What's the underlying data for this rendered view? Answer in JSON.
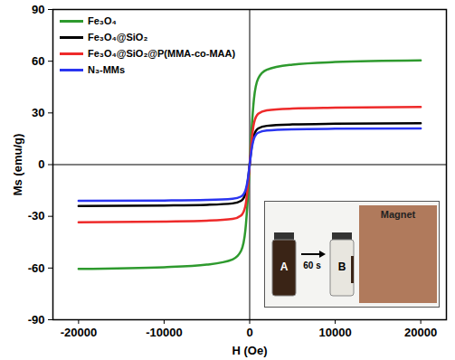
{
  "chart_data": {
    "type": "line",
    "x_label": "H (Oe)",
    "y_label": "Ms (emu/g)",
    "x": [
      -20000,
      -10000,
      -5000,
      -2000,
      -1000,
      -500,
      -200,
      0,
      200,
      500,
      1000,
      2000,
      5000,
      10000,
      20000
    ],
    "series": [
      {
        "name": "Fe₃O₄",
        "color": "#2e9a2e",
        "values": [
          -60.5,
          -59.5,
          -58,
          -55,
          -50,
          -38,
          -18,
          0,
          18,
          38,
          50,
          55,
          58,
          59.5,
          60.5
        ]
      },
      {
        "name": "Fe₃O₄@SiO₂",
        "color": "#000000",
        "values": [
          -24,
          -23.7,
          -23.3,
          -22.5,
          -21,
          -17,
          -9,
          0,
          9,
          17,
          21,
          22.5,
          23.3,
          23.7,
          24
        ]
      },
      {
        "name": "Fe₃O₄@SiO₂@P(MMA-co-MAA)",
        "color": "#ee2a2a",
        "values": [
          -33.5,
          -33,
          -32.5,
          -31.5,
          -29.5,
          -24,
          -12,
          0,
          12,
          24,
          29.5,
          31.5,
          32.5,
          33,
          33.5
        ]
      },
      {
        "name": "N₃-MMs",
        "color": "#2a35f0",
        "values": [
          -21,
          -20.8,
          -20.5,
          -19.8,
          -18.5,
          -15,
          -8,
          0,
          8,
          15,
          18.5,
          19.8,
          20.5,
          20.8,
          21
        ]
      }
    ],
    "xlim": [
      -23000,
      23000
    ],
    "xticks": [
      -20000,
      -10000,
      0,
      10000,
      20000
    ],
    "ylim": [
      -90,
      90
    ],
    "yticks": [
      -90,
      -60,
      -30,
      0,
      30,
      60,
      90
    ],
    "grid": false,
    "legend": "upper left",
    "inset": {
      "before": "A",
      "time": "60 s",
      "after": "B",
      "magnet": "Magnet"
    }
  }
}
